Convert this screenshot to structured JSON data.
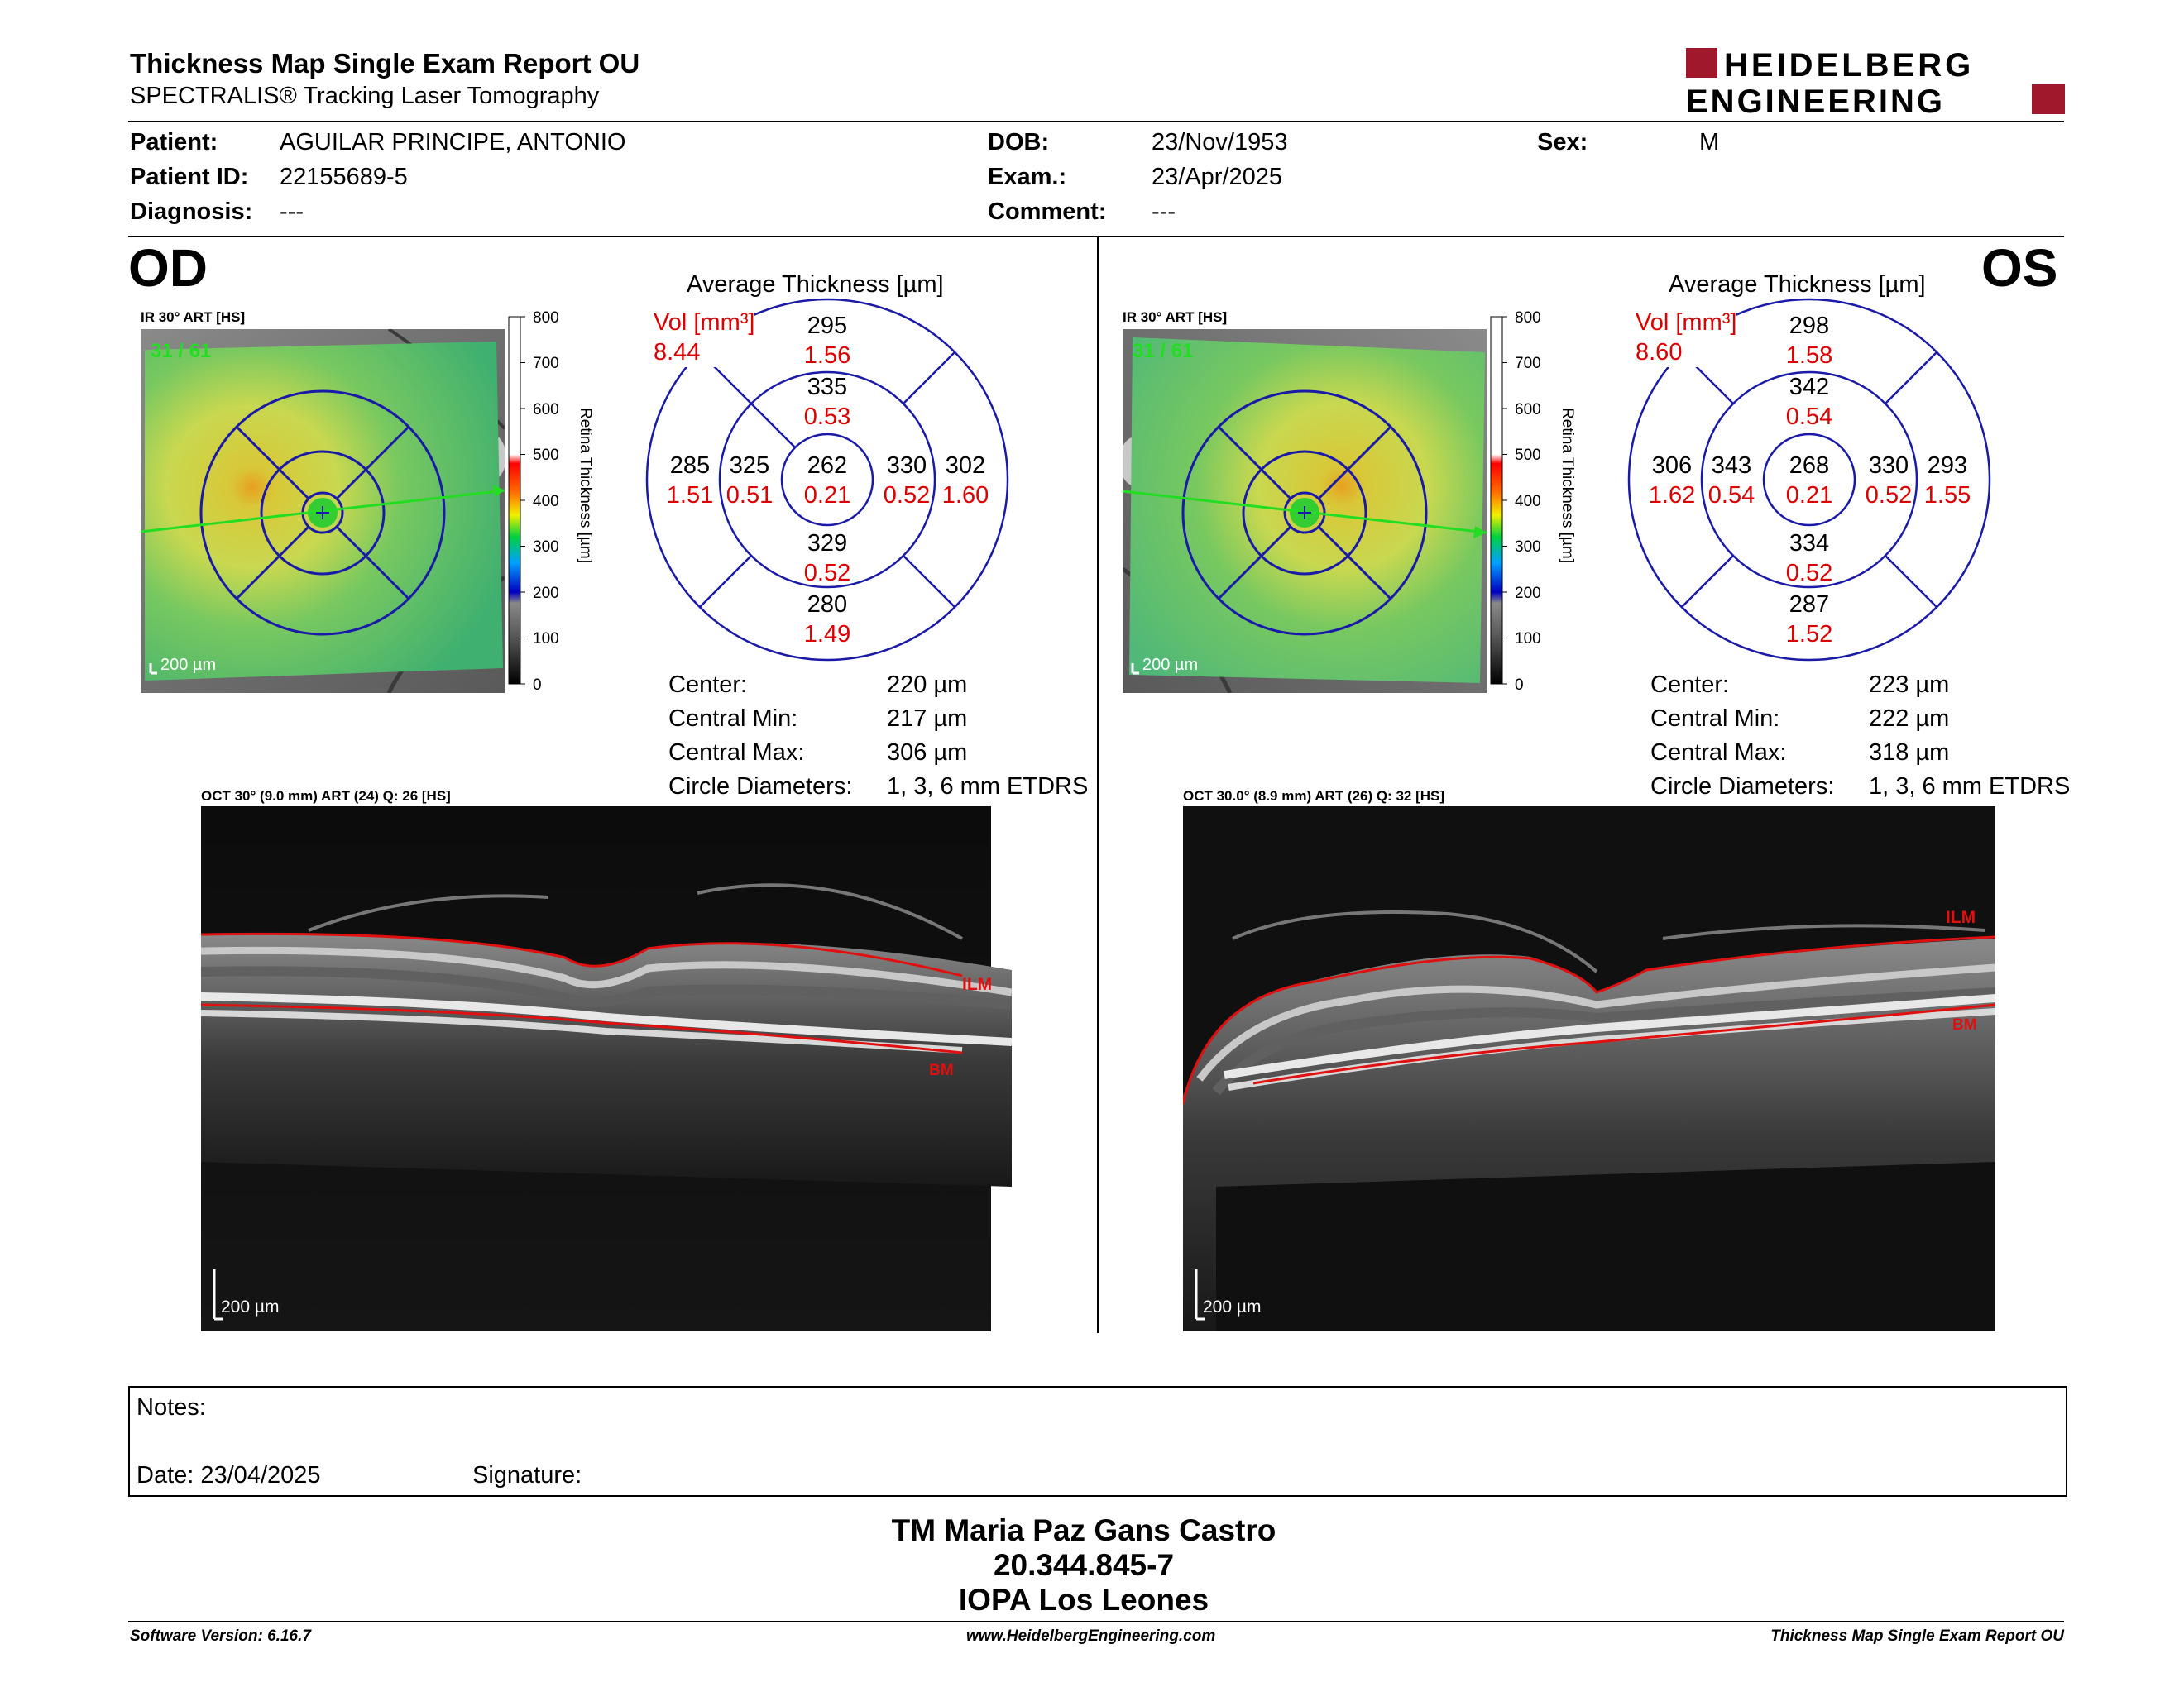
{
  "header": {
    "title": "Thickness Map Single Exam Report OU",
    "subtitle": "SPECTRALIS® Tracking Laser Tomography",
    "logo_line1": "HEIDELBERG",
    "logo_line2": "ENGINEERING"
  },
  "patient": {
    "patient_label": "Patient:",
    "patient_value": "AGUILAR PRINCIPE, ANTONIO",
    "id_label": "Patient ID:",
    "id_value": "22155689-5",
    "diagnosis_label": "Diagnosis:",
    "diagnosis_value": "---",
    "dob_label": "DOB:",
    "dob_value": "23/Nov/1953",
    "exam_label": "Exam.:",
    "exam_value": "23/Apr/2025",
    "comment_label": "Comment:",
    "comment_value": "---",
    "sex_label": "Sex:",
    "sex_value": "M"
  },
  "od": {
    "eye": "OD",
    "ir_label": "IR 30° ART [HS]",
    "frames": "31 / 61",
    "scale": "200 µm",
    "avg_title": "Average Thickness [µm]",
    "vol_label": "Vol [mm³]",
    "vol_value": "8.44",
    "grid": {
      "center_t": "262",
      "center_v": "0.21",
      "inner_sup_t": "335",
      "inner_sup_v": "0.53",
      "inner_inf_t": "329",
      "inner_inf_v": "0.52",
      "inner_left_t": "325",
      "inner_left_v": "0.51",
      "inner_right_t": "330",
      "inner_right_v": "0.52",
      "outer_sup_t": "295",
      "outer_sup_v": "1.56",
      "outer_inf_t": "280",
      "outer_inf_v": "1.49",
      "outer_left_t": "285",
      "outer_left_v": "1.51",
      "outer_right_t": "302",
      "outer_right_v": "1.60"
    },
    "stats": {
      "center_label": "Center:",
      "center_value": "220 µm",
      "min_label": "Central Min:",
      "min_value": "217 µm",
      "max_label": "Central Max:",
      "max_value": "306 µm",
      "circ_label": "Circle Diameters:",
      "circ_value": "1, 3, 6 mm ETDRS"
    },
    "oct_label": "OCT 30° (9.0 mm) ART (24) Q: 26 [HS]",
    "ilm": "ILM",
    "bm": "BM",
    "oct_scale": "200 µm"
  },
  "os": {
    "eye": "OS",
    "ir_label": "IR 30° ART [HS]",
    "frames": "31 / 61",
    "scale": "200 µm",
    "avg_title": "Average Thickness [µm]",
    "vol_label": "Vol [mm³]",
    "vol_value": "8.60",
    "grid": {
      "center_t": "268",
      "center_v": "0.21",
      "inner_sup_t": "342",
      "inner_sup_v": "0.54",
      "inner_inf_t": "334",
      "inner_inf_v": "0.52",
      "inner_left_t": "343",
      "inner_left_v": "0.54",
      "inner_right_t": "330",
      "inner_right_v": "0.52",
      "outer_sup_t": "298",
      "outer_sup_v": "1.58",
      "outer_inf_t": "287",
      "outer_inf_v": "1.52",
      "outer_left_t": "306",
      "outer_left_v": "1.62",
      "outer_right_t": "293",
      "outer_right_v": "1.55"
    },
    "stats": {
      "center_label": "Center:",
      "center_value": "223 µm",
      "min_label": "Central Min:",
      "min_value": "222 µm",
      "max_label": "Central Max:",
      "max_value": "318 µm",
      "circ_label": "Circle Diameters:",
      "circ_value": "1, 3, 6 mm ETDRS"
    },
    "oct_label": "OCT 30.0° (8.9 mm) ART (26) Q: 32 [HS]",
    "ilm": "ILM",
    "bm": "BM",
    "oct_scale": "200 µm"
  },
  "colorbar": {
    "ticks": [
      "800",
      "700",
      "600",
      "500",
      "400",
      "300",
      "200",
      "100",
      "0"
    ],
    "label": "Retina Thickness [µm]"
  },
  "notes": {
    "notes_label": "Notes:",
    "date_label": "Date: 23/04/2025",
    "signature_label": "Signature:"
  },
  "signature_block": {
    "name": "TM Maria Paz Gans Castro",
    "id": "20.344.845-7",
    "institution": "IOPA Los Leones"
  },
  "footer": {
    "software": "Software Version: 6.16.7",
    "website": "www.HeidelbergEngineering.com",
    "report": "Thickness Map Single Exam Report OU"
  },
  "colors": {
    "grid_blue": "#1a1aa8",
    "volume_red": "#dd0000",
    "logo_red": "#a0182c",
    "segmentation_red": "#e01010"
  }
}
